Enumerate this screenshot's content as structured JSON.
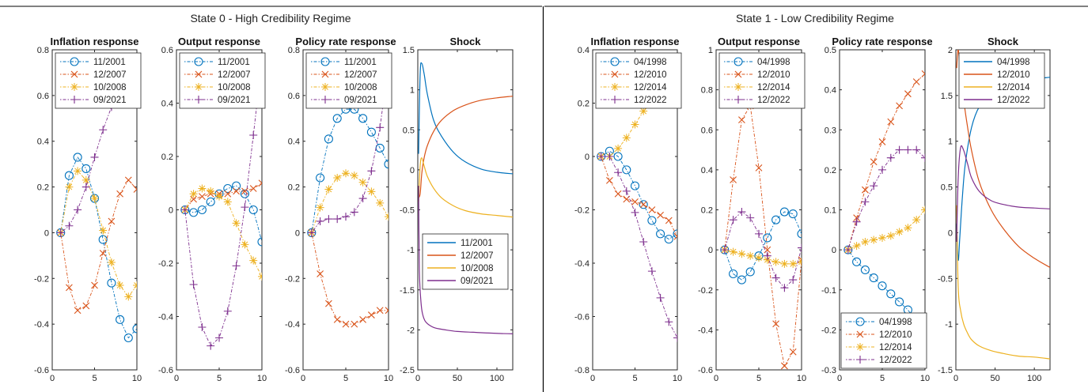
{
  "colors": {
    "s1": "#0072BD",
    "s2": "#D95319",
    "s3": "#EDB120",
    "s4": "#7E2F8E"
  },
  "panels": [
    {
      "title": "State 0 - High Credibility Regime"
    },
    {
      "title": "State 1 - Low Credibility Regime"
    }
  ],
  "chart_data": [
    {
      "type": "line",
      "panel": 0,
      "title": "Inflation response",
      "legend_pos": "top-left",
      "xlim": [
        0,
        10
      ],
      "ylim": [
        -0.6,
        0.8
      ],
      "xticks": [
        0,
        5,
        10
      ],
      "yticks": [
        -0.6,
        -0.4,
        -0.2,
        0,
        0.2,
        0.4,
        0.6,
        0.8
      ],
      "series": [
        {
          "name": "11/2001",
          "marker": "o",
          "x": [
            1,
            2,
            3,
            4,
            5,
            6,
            7,
            8,
            9,
            10
          ],
          "y": [
            0,
            0.25,
            0.33,
            0.28,
            0.15,
            -0.03,
            -0.22,
            -0.38,
            -0.46,
            -0.42
          ]
        },
        {
          "name": "12/2007",
          "marker": "x",
          "x": [
            1,
            2,
            3,
            4,
            5,
            6,
            7,
            8,
            9,
            10
          ],
          "y": [
            0,
            -0.24,
            -0.34,
            -0.32,
            -0.23,
            -0.09,
            0.05,
            0.17,
            0.23,
            0.19
          ]
        },
        {
          "name": "10/2008",
          "marker": "*",
          "x": [
            1,
            2,
            3,
            4,
            5,
            6,
            7,
            8,
            9,
            10
          ],
          "y": [
            0,
            0.2,
            0.27,
            0.23,
            0.15,
            0.01,
            -0.13,
            -0.23,
            -0.28,
            -0.23
          ]
        },
        {
          "name": "09/2021",
          "marker": "+",
          "x": [
            1,
            2,
            3,
            4,
            5,
            6,
            7,
            8,
            9,
            10
          ],
          "y": [
            0,
            0.03,
            0.1,
            0.2,
            0.33,
            0.45,
            0.55,
            0.61,
            0.63,
            0.56
          ]
        }
      ]
    },
    {
      "type": "line",
      "panel": 0,
      "title": "Output response",
      "legend_pos": "top-left",
      "xlim": [
        0,
        10
      ],
      "ylim": [
        -0.6,
        0.6
      ],
      "xticks": [
        0,
        5,
        10
      ],
      "yticks": [
        -0.6,
        -0.4,
        -0.2,
        0,
        0.2,
        0.4,
        0.6
      ],
      "series": [
        {
          "name": "11/2001",
          "marker": "o",
          "x": [
            1,
            2,
            3,
            4,
            5,
            6,
            7,
            8,
            9,
            10
          ],
          "y": [
            0,
            -0.01,
            0,
            0.03,
            0.06,
            0.08,
            0.09,
            0.06,
            0,
            -0.12
          ]
        },
        {
          "name": "12/2007",
          "marker": "x",
          "x": [
            1,
            2,
            3,
            4,
            5,
            6,
            7,
            8,
            9,
            10
          ],
          "y": [
            0,
            0.04,
            0.05,
            0.06,
            0.06,
            0.06,
            0.07,
            0.07,
            0.08,
            0.1
          ]
        },
        {
          "name": "10/2008",
          "marker": "*",
          "x": [
            1,
            2,
            3,
            4,
            5,
            6,
            7,
            8,
            9,
            10
          ],
          "y": [
            0,
            0.06,
            0.08,
            0.07,
            0.05,
            0.03,
            -0.05,
            -0.13,
            -0.19,
            -0.25
          ]
        },
        {
          "name": "09/2021",
          "marker": "+",
          "x": [
            1,
            2,
            3,
            4,
            5,
            6,
            7,
            8,
            9,
            10
          ],
          "y": [
            0,
            -0.28,
            -0.44,
            -0.51,
            -0.48,
            -0.38,
            -0.21,
            0.01,
            0.28,
            0.56
          ]
        }
      ]
    },
    {
      "type": "line",
      "panel": 0,
      "title": "Policy rate response",
      "legend_pos": "top-left",
      "xlim": [
        0,
        10
      ],
      "ylim": [
        -0.6,
        0.8
      ],
      "xticks": [
        0,
        5,
        10
      ],
      "yticks": [
        -0.6,
        -0.4,
        -0.2,
        0,
        0.2,
        0.4,
        0.6,
        0.8
      ],
      "series": [
        {
          "name": "11/2001",
          "marker": "o",
          "x": [
            1,
            2,
            3,
            4,
            5,
            6,
            7,
            8,
            9,
            10
          ],
          "y": [
            0,
            0.24,
            0.41,
            0.5,
            0.54,
            0.54,
            0.5,
            0.44,
            0.37,
            0.3
          ]
        },
        {
          "name": "12/2007",
          "marker": "x",
          "x": [
            1,
            2,
            3,
            4,
            5,
            6,
            7,
            8,
            9,
            10
          ],
          "y": [
            0,
            -0.18,
            -0.31,
            -0.38,
            -0.4,
            -0.4,
            -0.38,
            -0.36,
            -0.34,
            -0.34
          ]
        },
        {
          "name": "10/2008",
          "marker": "*",
          "x": [
            1,
            2,
            3,
            4,
            5,
            6,
            7,
            8,
            9,
            10
          ],
          "y": [
            0,
            0.11,
            0.19,
            0.24,
            0.26,
            0.25,
            0.22,
            0.18,
            0.13,
            0.07
          ]
        },
        {
          "name": "09/2021",
          "marker": "+",
          "x": [
            1,
            2,
            3,
            4,
            5,
            6,
            7,
            8,
            9,
            10
          ],
          "y": [
            0,
            0.05,
            0.06,
            0.06,
            0.07,
            0.09,
            0.15,
            0.27,
            0.46,
            0.74
          ]
        }
      ]
    },
    {
      "type": "line",
      "panel": 0,
      "title": "Shock",
      "legend_pos": "bottom-right",
      "xlim": [
        0,
        120
      ],
      "ylim": [
        -2.5,
        1.5
      ],
      "xticks": [
        0,
        50,
        100
      ],
      "yticks": [
        -2.5,
        -2,
        -1.5,
        -1,
        -0.5,
        0,
        0.5,
        1,
        1.5
      ],
      "series": [
        {
          "name": "11/2001",
          "x": [
            1,
            3,
            5,
            8,
            12,
            20,
            30,
            45,
            60,
            80,
            100,
            120
          ],
          "y": [
            0.2,
            1.2,
            1.33,
            1.2,
            0.95,
            0.62,
            0.42,
            0.22,
            0.1,
            0.01,
            -0.03,
            -0.05
          ]
        },
        {
          "name": "12/2007",
          "x": [
            1,
            3,
            5,
            8,
            12,
            20,
            30,
            45,
            60,
            80,
            100,
            120
          ],
          "y": [
            -0.35,
            -0.3,
            -0.05,
            0.15,
            0.3,
            0.48,
            0.62,
            0.74,
            0.81,
            0.87,
            0.9,
            0.92
          ]
        },
        {
          "name": "10/2008",
          "x": [
            1,
            3,
            5,
            8,
            12,
            20,
            30,
            45,
            60,
            80,
            100,
            120
          ],
          "y": [
            -0.4,
            0.05,
            0.15,
            0.05,
            -0.08,
            -0.23,
            -0.35,
            -0.45,
            -0.51,
            -0.55,
            -0.57,
            -0.59
          ]
        },
        {
          "name": "09/2021",
          "x": [
            1,
            2,
            4,
            6,
            10,
            20,
            35,
            50,
            70,
            90,
            120
          ],
          "y": [
            -0.2,
            -1.25,
            -1.65,
            -1.8,
            -1.9,
            -1.97,
            -2.0,
            -2.02,
            -2.03,
            -2.04,
            -2.05
          ]
        }
      ]
    },
    {
      "type": "line",
      "panel": 1,
      "title": "Inflation response",
      "legend_pos": "top-left",
      "xlim": [
        0,
        10
      ],
      "ylim": [
        -0.8,
        0.4
      ],
      "xticks": [
        0,
        5,
        10
      ],
      "yticks": [
        -0.8,
        -0.6,
        -0.4,
        -0.2,
        0,
        0.2,
        0.4
      ],
      "series": [
        {
          "name": "04/1998",
          "marker": "o",
          "x": [
            1,
            2,
            3,
            4,
            5,
            6,
            7,
            8,
            9,
            10
          ],
          "y": [
            0,
            0.02,
            0,
            -0.05,
            -0.11,
            -0.18,
            -0.24,
            -0.29,
            -0.31,
            -0.29
          ]
        },
        {
          "name": "12/2010",
          "marker": "x",
          "x": [
            1,
            2,
            3,
            4,
            5,
            6,
            7,
            8,
            9,
            10
          ],
          "y": [
            0,
            -0.09,
            -0.14,
            -0.16,
            -0.17,
            -0.18,
            -0.2,
            -0.22,
            -0.24,
            -0.3
          ]
        },
        {
          "name": "12/2014",
          "marker": "*",
          "x": [
            1,
            2,
            3,
            4,
            5,
            6,
            7,
            8,
            9,
            10
          ],
          "y": [
            0,
            0,
            0.03,
            0.07,
            0.12,
            0.17,
            0.21,
            0.25,
            0.28,
            0.3
          ]
        },
        {
          "name": "12/2022",
          "marker": "+",
          "x": [
            1,
            2,
            3,
            4,
            5,
            6,
            7,
            8,
            9,
            10
          ],
          "y": [
            0,
            0,
            -0.06,
            -0.13,
            -0.21,
            -0.32,
            -0.43,
            -0.53,
            -0.62,
            -0.68
          ]
        }
      ]
    },
    {
      "type": "line",
      "panel": 1,
      "title": "Output response",
      "legend_pos": "top-left",
      "xlim": [
        0,
        10
      ],
      "ylim": [
        -0.6,
        1.0
      ],
      "xticks": [
        0,
        5,
        10
      ],
      "yticks": [
        -0.6,
        -0.4,
        -0.2,
        0,
        0.2,
        0.4,
        0.6,
        0.8,
        1
      ],
      "series": [
        {
          "name": "04/1998",
          "marker": "o",
          "x": [
            1,
            2,
            3,
            4,
            5,
            6,
            7,
            8,
            9,
            10
          ],
          "y": [
            0,
            -0.12,
            -0.15,
            -0.11,
            -0.03,
            0.06,
            0.15,
            0.19,
            0.18,
            0.08
          ]
        },
        {
          "name": "12/2010",
          "marker": "x",
          "x": [
            1,
            2,
            3,
            4,
            5,
            6,
            7,
            8,
            9,
            10
          ],
          "y": [
            0,
            0.35,
            0.65,
            0.72,
            0.41,
            0,
            -0.37,
            -0.58,
            -0.51,
            -0.05
          ]
        },
        {
          "name": "12/2014",
          "marker": "*",
          "x": [
            1,
            2,
            3,
            4,
            5,
            6,
            7,
            8,
            9,
            10
          ],
          "y": [
            0,
            -0.01,
            -0.02,
            -0.03,
            -0.04,
            -0.05,
            -0.06,
            -0.07,
            -0.07,
            -0.06
          ]
        },
        {
          "name": "12/2022",
          "marker": "+",
          "x": [
            1,
            2,
            3,
            4,
            5,
            6,
            7,
            8,
            9,
            10
          ],
          "y": [
            0,
            0.15,
            0.19,
            0.16,
            0.08,
            -0.03,
            -0.14,
            -0.19,
            -0.15,
            0.01
          ]
        }
      ]
    },
    {
      "type": "line",
      "panel": 1,
      "title": "Policy rate response",
      "legend_pos": "bottom-right",
      "xlim": [
        0,
        10
      ],
      "ylim": [
        -0.3,
        0.5
      ],
      "xticks": [
        0,
        5,
        10
      ],
      "yticks": [
        -0.3,
        -0.2,
        -0.1,
        0,
        0.1,
        0.2,
        0.3,
        0.4,
        0.5
      ],
      "series": [
        {
          "name": "04/1998",
          "marker": "o",
          "x": [
            1,
            2,
            3,
            4,
            5,
            6,
            7,
            8,
            9,
            10
          ],
          "y": [
            0,
            -0.03,
            -0.05,
            -0.07,
            -0.09,
            -0.11,
            -0.13,
            -0.15,
            -0.18,
            -0.21
          ]
        },
        {
          "name": "12/2010",
          "marker": "x",
          "x": [
            1,
            2,
            3,
            4,
            5,
            6,
            7,
            8,
            9,
            10
          ],
          "y": [
            0,
            0.08,
            0.15,
            0.22,
            0.27,
            0.32,
            0.36,
            0.39,
            0.42,
            0.44
          ]
        },
        {
          "name": "12/2014",
          "marker": "*",
          "x": [
            1,
            2,
            3,
            4,
            5,
            6,
            7,
            8,
            9,
            10
          ],
          "y": [
            0,
            0.01,
            0.02,
            0.025,
            0.03,
            0.035,
            0.045,
            0.055,
            0.075,
            0.1
          ]
        },
        {
          "name": "12/2022",
          "marker": "+",
          "x": [
            1,
            2,
            3,
            4,
            5,
            6,
            7,
            8,
            9,
            10
          ],
          "y": [
            0,
            0.07,
            0.12,
            0.16,
            0.2,
            0.23,
            0.25,
            0.25,
            0.25,
            0.23
          ]
        }
      ]
    },
    {
      "type": "line",
      "panel": 1,
      "title": "Shock",
      "legend_pos": "top-left",
      "xlim": [
        0,
        120
      ],
      "ylim": [
        -1.5,
        2.0
      ],
      "xticks": [
        0,
        50,
        100
      ],
      "yticks": [
        -1.5,
        -1,
        -0.5,
        0,
        0.5,
        1,
        1.5,
        2
      ],
      "series": [
        {
          "name": "04/1998",
          "x": [
            1,
            3,
            5,
            8,
            12,
            20,
            30,
            45,
            60,
            80,
            100,
            120
          ],
          "y": [
            0.1,
            -0.3,
            -0.05,
            0.35,
            0.75,
            1.15,
            1.38,
            1.52,
            1.6,
            1.65,
            1.68,
            1.7
          ]
        },
        {
          "name": "12/2010",
          "x": [
            1,
            3,
            6,
            10,
            15,
            20,
            30,
            45,
            60,
            80,
            100,
            120
          ],
          "y": [
            1.8,
            2.0,
            1.75,
            1.45,
            1.15,
            0.9,
            0.55,
            0.25,
            0.05,
            -0.15,
            -0.28,
            -0.38
          ]
        },
        {
          "name": "12/2014",
          "x": [
            1,
            3,
            6,
            10,
            15,
            20,
            30,
            45,
            60,
            80,
            100,
            120
          ],
          "y": [
            0.3,
            -0.6,
            -0.85,
            -1.0,
            -1.1,
            -1.17,
            -1.24,
            -1.29,
            -1.32,
            -1.35,
            -1.36,
            -1.38
          ]
        },
        {
          "name": "12/2022",
          "x": [
            1,
            3,
            6,
            10,
            15,
            20,
            30,
            45,
            60,
            80,
            100,
            120
          ],
          "y": [
            -0.1,
            0.6,
            0.93,
            0.9,
            0.75,
            0.6,
            0.45,
            0.35,
            0.31,
            0.28,
            0.27,
            0.26
          ]
        }
      ]
    }
  ]
}
